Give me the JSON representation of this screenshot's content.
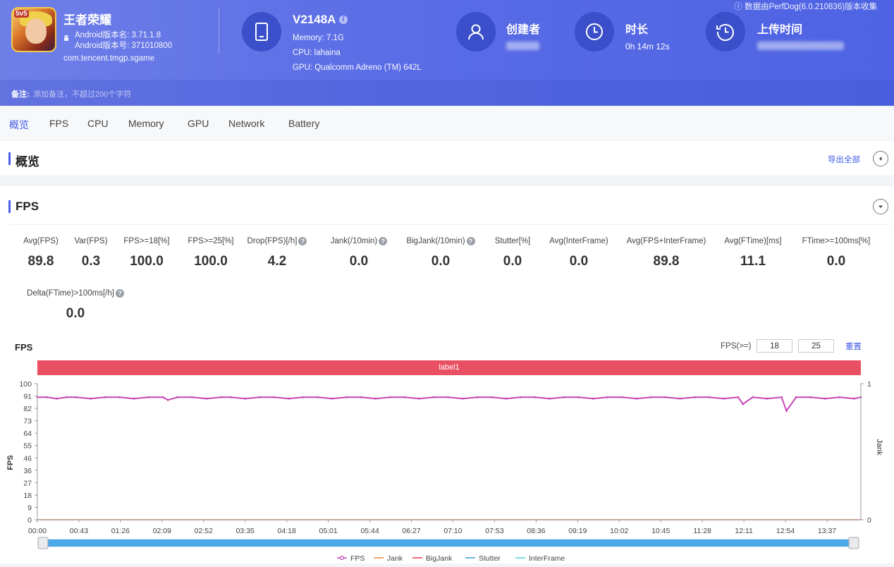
{
  "app": {
    "name": "王者荣耀",
    "icon_badge": "5v5",
    "version_name": "Android版本名: 3.71.1.8",
    "version_code": "Android版本号: 371010800",
    "package": "com.tencent.tmgp.sgame"
  },
  "device": {
    "name": "V2148A",
    "info_icon": "i",
    "memory": "Memory: 7.1G",
    "cpu": "CPU: lahaina",
    "gpu": "GPU: Qualcomm Adreno (TM) 642L"
  },
  "meta": {
    "creator_title": "创建者",
    "duration_title": "时长",
    "duration_value": "0h 14m 12s",
    "upload_title": "上传时间",
    "source_note": "ⓘ 数据由PerfDog(6.0.210836)版本收集"
  },
  "remark": {
    "label": "备注:",
    "placeholder": "添加备注，不超过200个字符"
  },
  "tabs": [
    "概览",
    "FPS",
    "CPU",
    "Memory",
    "GPU",
    "Network",
    "Battery"
  ],
  "overview": {
    "title": "概览",
    "export_label": "导出全部"
  },
  "fps_section": {
    "title": "FPS",
    "metrics": [
      {
        "label": "Avg(FPS)",
        "value": "89.8",
        "help": false
      },
      {
        "label": "Var(FPS)",
        "value": "0.3",
        "help": false
      },
      {
        "label": "FPS>=18[%]",
        "value": "100.0",
        "help": false
      },
      {
        "label": "FPS>=25[%]",
        "value": "100.0",
        "help": false
      },
      {
        "label": "Drop(FPS)[/h]",
        "value": "4.2",
        "help": true
      },
      {
        "label": "Jank(/10min)",
        "value": "0.0",
        "help": true
      },
      {
        "label": "BigJank(/10min)",
        "value": "0.0",
        "help": true
      },
      {
        "label": "Stutter[%]",
        "value": "0.0",
        "help": false
      },
      {
        "label": "Avg(InterFrame)",
        "value": "0.0",
        "help": false
      },
      {
        "label": "Avg(FPS+InterFrame)",
        "value": "89.8",
        "help": false
      },
      {
        "label": "Avg(FTime)[ms]",
        "value": "11.1",
        "help": false
      },
      {
        "label": "FTime>=100ms[%]",
        "value": "0.0",
        "help": false
      },
      {
        "label": "Delta(FTime)>100ms[/h]",
        "value": "0.0",
        "help": true
      }
    ],
    "help_glyph": "?"
  },
  "chart_controls": {
    "title": "FPS",
    "threshold_label": "FPS(>=)",
    "threshold_1": "18",
    "threshold_2": "25",
    "reset_label": "重置",
    "band_label": "label1"
  },
  "chart_data": {
    "type": "line",
    "ylabel": "FPS",
    "y2label": "Jank",
    "ylim": [
      0,
      100
    ],
    "y_ticks": [
      "100",
      "91",
      "82",
      "73",
      "64",
      "55",
      "46",
      "36",
      "27",
      "18",
      "9",
      "0"
    ],
    "y2_ticks": [
      "1",
      "0"
    ],
    "x_ticks": [
      "00:00",
      "00:43",
      "01:26",
      "02:09",
      "02:52",
      "03:35",
      "04:18",
      "05:01",
      "05:44",
      "06:27",
      "07:10",
      "07:53",
      "08:36",
      "09:19",
      "10:02",
      "10:45",
      "11:28",
      "12:11",
      "12:54",
      "13:37"
    ],
    "duration_seconds": 852,
    "colors": {
      "FPS": "#c646b6",
      "Jank": "#f08a3e",
      "BigJank": "#e8394a",
      "Stutter": "#3a9bdc",
      "InterFrame": "#4dd0d8"
    },
    "series": [
      {
        "name": "FPS",
        "x": [
          0,
          10,
          20,
          30,
          40,
          55,
          70,
          85,
          100,
          115,
          130,
          135,
          145,
          160,
          175,
          190,
          200,
          215,
          230,
          245,
          260,
          275,
          290,
          305,
          320,
          335,
          350,
          365,
          380,
          395,
          410,
          425,
          440,
          455,
          470,
          485,
          500,
          515,
          530,
          545,
          560,
          575,
          590,
          605,
          620,
          635,
          650,
          665,
          680,
          695,
          710,
          725,
          730,
          740,
          755,
          770,
          775,
          785,
          800,
          815,
          830,
          845,
          852
        ],
        "values": [
          90,
          90,
          89,
          90,
          90,
          89,
          90,
          90,
          89,
          90,
          90,
          88,
          90,
          90,
          89,
          90,
          90,
          89,
          90,
          90,
          89,
          90,
          90,
          89,
          90,
          90,
          89,
          90,
          90,
          89,
          90,
          90,
          89,
          90,
          90,
          89,
          90,
          90,
          89,
          90,
          90,
          89,
          90,
          90,
          89,
          90,
          90,
          89,
          90,
          90,
          89,
          90,
          85,
          90,
          89,
          90,
          80,
          90,
          90,
          89,
          90,
          89,
          90
        ]
      },
      {
        "name": "Jank",
        "values": [
          0
        ]
      },
      {
        "name": "BigJank",
        "values": [
          0
        ]
      },
      {
        "name": "Stutter",
        "values": [
          0
        ]
      },
      {
        "name": "InterFrame",
        "values": [
          0
        ]
      }
    ],
    "legend": [
      "FPS",
      "Jank",
      "BigJank",
      "Stutter",
      "InterFrame"
    ],
    "legend_position": "bottom-center"
  }
}
